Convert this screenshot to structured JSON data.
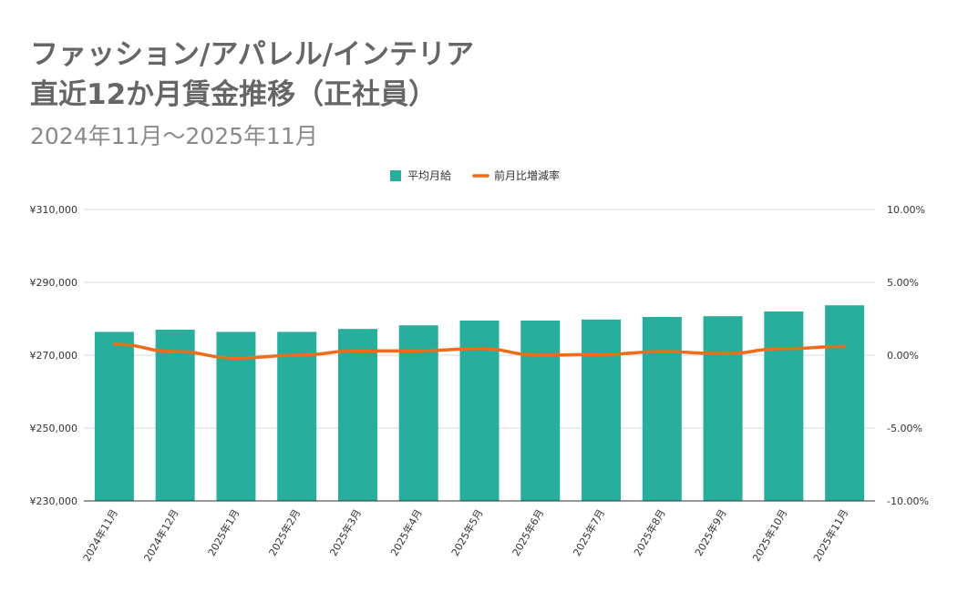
{
  "chart_data": {
    "type": "bar",
    "title_line1": "ファッション/アパレル/インテリア",
    "title_line2": "直近12か月賃金推移（正社員）",
    "subtitle": "2024年11月～2025年11月",
    "categories": [
      "2024年11月",
      "2024年12月",
      "2025年1月",
      "2025年2月",
      "2025年3月",
      "2025年4月",
      "2025年5月",
      "2025年6月",
      "2025年7月",
      "2025年8月",
      "2025年9月",
      "2025年10月",
      "2025年11月"
    ],
    "series": [
      {
        "name": "平均月給",
        "type": "bar",
        "axis": "left",
        "color": "#27ae9c",
        "values": [
          276400,
          277000,
          276400,
          276400,
          277200,
          278200,
          279500,
          279500,
          279800,
          280500,
          280700,
          282000,
          283700
        ]
      },
      {
        "name": "前月比増減率",
        "type": "line",
        "axis": "right",
        "color": "#ef6c1a",
        "values": [
          0.75,
          0.25,
          -0.2,
          0.0,
          0.3,
          0.3,
          0.45,
          0.0,
          0.05,
          0.25,
          0.1,
          0.45,
          0.6
        ]
      }
    ],
    "y_left": {
      "min": 230000,
      "max": 310000,
      "ticks": [
        230000,
        250000,
        270000,
        290000,
        310000
      ],
      "tick_labels": [
        "¥230,000",
        "¥250,000",
        "¥270,000",
        "¥290,000",
        "¥310,000"
      ]
    },
    "y_right": {
      "min": -10,
      "max": 10,
      "ticks": [
        -10,
        -5,
        0,
        5,
        10
      ],
      "tick_labels": [
        "-10.00%",
        "-5.00%",
        "0.00%",
        "5.00%",
        "10.00%"
      ]
    },
    "grid": true,
    "legend_position": "top-center",
    "colors": {
      "grid": "#d9d9d9",
      "axis_text": "#333333",
      "title": "#666666",
      "subtitle": "#8a8a8a"
    }
  }
}
